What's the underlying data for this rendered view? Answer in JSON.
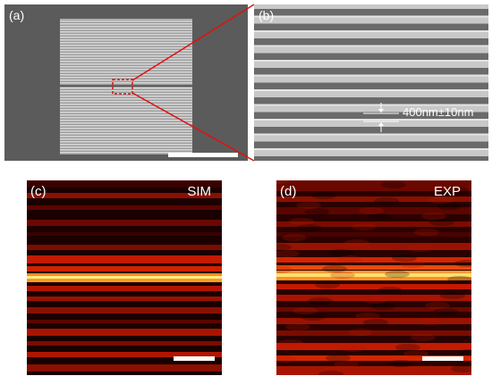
{
  "figure": {
    "panels": [
      {
        "id": "a",
        "label": "(a)",
        "content": "SEM image of grating sample"
      },
      {
        "id": "b",
        "label": "(b)",
        "content": "Zoomed SEM of grating lines",
        "annotation": "400nm±10nm"
      },
      {
        "id": "c",
        "label": "(c)",
        "tag": "SIM"
      },
      {
        "id": "d",
        "label": "(d)",
        "tag": "EXP"
      }
    ],
    "colors": {
      "sem_background": "#5a5a5a",
      "grating": "#bdbdbd",
      "highlight": "#e01010",
      "heatmap_dark": "#1a0000",
      "heatmap_red": "#c41a00",
      "heatmap_bright": "#ffe066"
    }
  }
}
